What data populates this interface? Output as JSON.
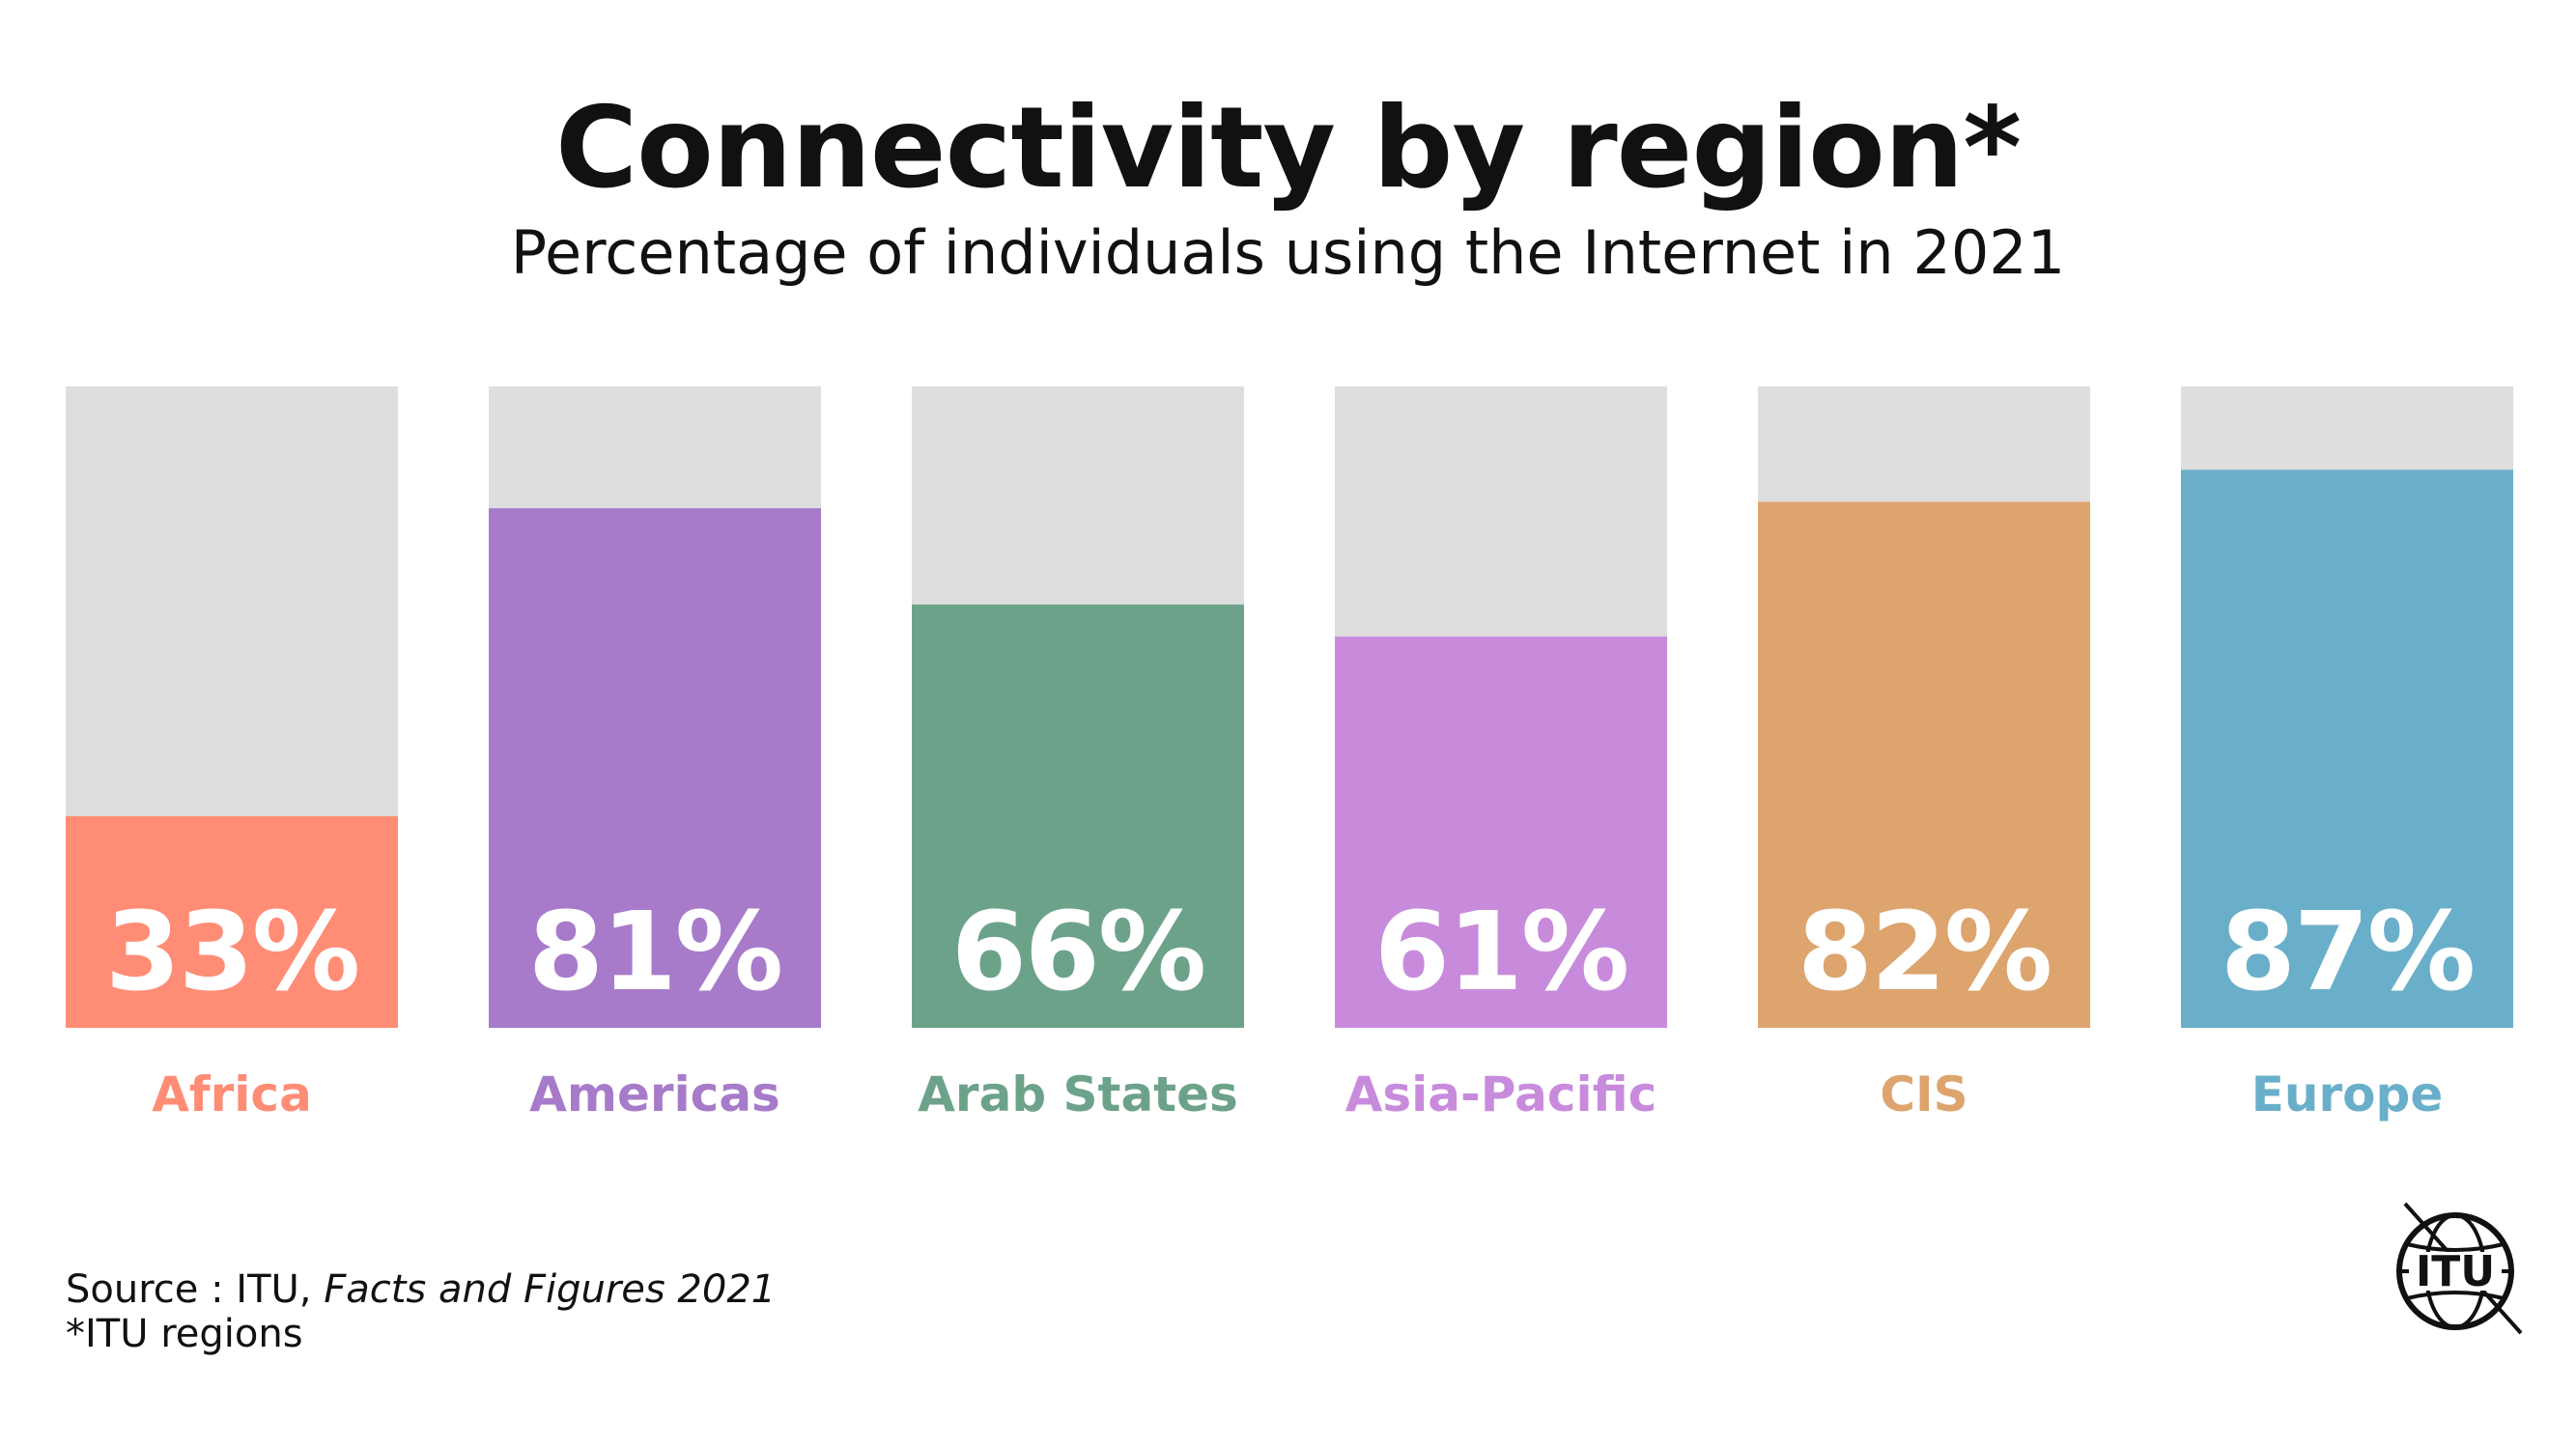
{
  "chart_data": {
    "type": "bar",
    "title": "Connectivity by region*",
    "subtitle": "Percentage of individuals using the Internet in 2021",
    "categories": [
      "Africa",
      "Americas",
      "Arab States",
      "Asia-Pacific",
      "CIS",
      "Europe"
    ],
    "values": [
      33,
      81,
      66,
      61,
      82,
      87
    ],
    "value_labels": [
      "33%",
      "81%",
      "66%",
      "61%",
      "82%",
      "87%"
    ],
    "colors": [
      "#FF8C75",
      "#A77BCA",
      "#6DA28A",
      "#C88BDC",
      "#DDA46E",
      "#6AAFCA"
    ],
    "track_color": "#DEDEDE",
    "ylim": [
      0,
      100
    ],
    "grid": false,
    "legend": "none"
  },
  "footer": {
    "source_prefix": "Source : ITU, ",
    "source_publication": "Facts and Figures 2021",
    "note": "*ITU regions"
  },
  "logo": {
    "text": "ITU",
    "icon": "itu-globe-logo-icon"
  }
}
